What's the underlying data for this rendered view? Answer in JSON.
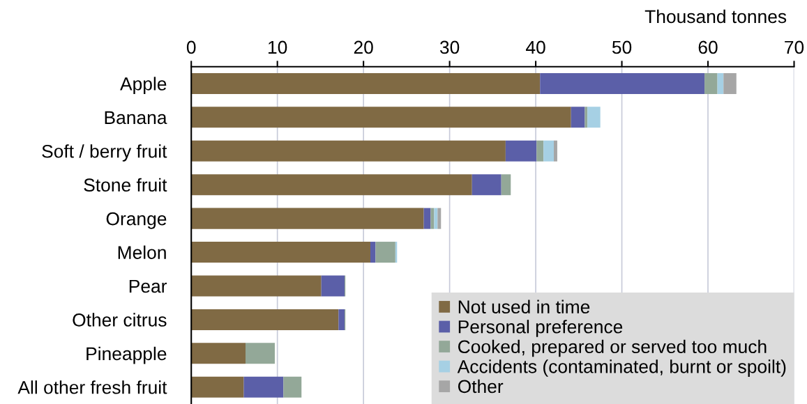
{
  "chart_data": {
    "type": "bar",
    "orientation": "horizontal",
    "stacked": true,
    "xlabel": "Thousand tonnes",
    "categories": [
      "Apple",
      "Banana",
      "Soft / berry fruit",
      "Stone fruit",
      "Orange",
      "Melon",
      "Pear",
      "Other citrus",
      "Pineapple",
      "All other fresh fruit"
    ],
    "series": [
      {
        "name": "Not used in time",
        "color": "#806a44",
        "values": [
          40.5,
          44.1,
          36.5,
          32.6,
          27.0,
          20.8,
          15.1,
          17.1,
          6.3,
          6.1
        ]
      },
      {
        "name": "Personal preference",
        "color": "#5b5fa8",
        "values": [
          19.1,
          1.6,
          3.6,
          3.4,
          0.8,
          0.6,
          2.7,
          0.7,
          null,
          4.6
        ]
      },
      {
        "name": "Cooked, prepared or served too much",
        "color": "#93a898",
        "values": [
          1.5,
          0.3,
          0.8,
          1.1,
          0.4,
          2.3,
          0.1,
          0.1,
          3.4,
          2.1
        ]
      },
      {
        "name": "Accidents (contaminated, burnt or spoilt)",
        "color": "#a6d0e4",
        "values": [
          0.7,
          1.5,
          1.2,
          null,
          0.4,
          0.2,
          null,
          null,
          null,
          null
        ]
      },
      {
        "name": "Other",
        "color": "#a6a6a6",
        "values": [
          1.5,
          null,
          0.4,
          null,
          0.4,
          null,
          null,
          null,
          null,
          null
        ]
      }
    ],
    "xlim": [
      0,
      70
    ],
    "xticks": [
      0,
      10,
      20,
      30,
      40,
      50,
      60,
      70
    ],
    "grid": "x",
    "legend": "bottom right"
  }
}
